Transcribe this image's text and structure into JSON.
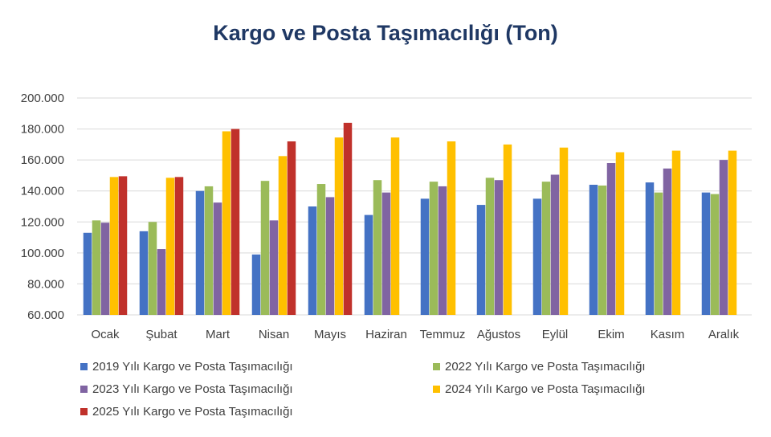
{
  "chart_data": {
    "type": "bar",
    "title": "Kargo ve Posta Taşımacılığı (Ton)",
    "xlabel": "",
    "ylabel": "",
    "ylim": [
      60000,
      200000
    ],
    "yticks": [
      60000,
      80000,
      100000,
      120000,
      140000,
      160000,
      180000,
      200000
    ],
    "ytick_labels": [
      "60.000",
      "80.000",
      "100.000",
      "120.000",
      "140.000",
      "160.000",
      "180.000",
      "200.000"
    ],
    "grid": true,
    "legend_position": "bottom",
    "categories": [
      "Ocak",
      "Şubat",
      "Mart",
      "Nisan",
      "Mayıs",
      "Haziran",
      "Temmuz",
      "Ağustos",
      "Eylül",
      "Ekim",
      "Kasım",
      "Aralık"
    ],
    "series": [
      {
        "name": "2019 Yılı Kargo ve Posta Taşımacılığı",
        "color": "#4472C4",
        "values": [
          113000,
          114000,
          140000,
          99000,
          130000,
          124500,
          135000,
          131000,
          135000,
          144000,
          145500,
          139000
        ]
      },
      {
        "name": "2022 Yılı Kargo ve Posta Taşımacılığı",
        "color": "#9BBB59",
        "values": [
          121000,
          120000,
          143000,
          146500,
          144500,
          147000,
          146000,
          148500,
          146000,
          143500,
          139000,
          138000
        ]
      },
      {
        "name": "2023 Yılı Kargo ve Posta Taşımacılığı",
        "color": "#8064A2",
        "values": [
          119500,
          102500,
          132500,
          121000,
          136000,
          139000,
          143000,
          147000,
          150500,
          158000,
          154500,
          160000
        ]
      },
      {
        "name": "2024 Yılı Kargo ve Posta Taşımacılığı",
        "color": "#FFC000",
        "values": [
          149000,
          148500,
          178500,
          162500,
          174500,
          174500,
          172000,
          170000,
          168000,
          165000,
          166000,
          166000
        ]
      },
      {
        "name": "2025 Yılı Kargo ve Posta Taşımacılığı",
        "color": "#C0312B",
        "values": [
          149500,
          149000,
          180000,
          172000,
          184000,
          null,
          null,
          null,
          null,
          null,
          null,
          null
        ]
      }
    ]
  }
}
